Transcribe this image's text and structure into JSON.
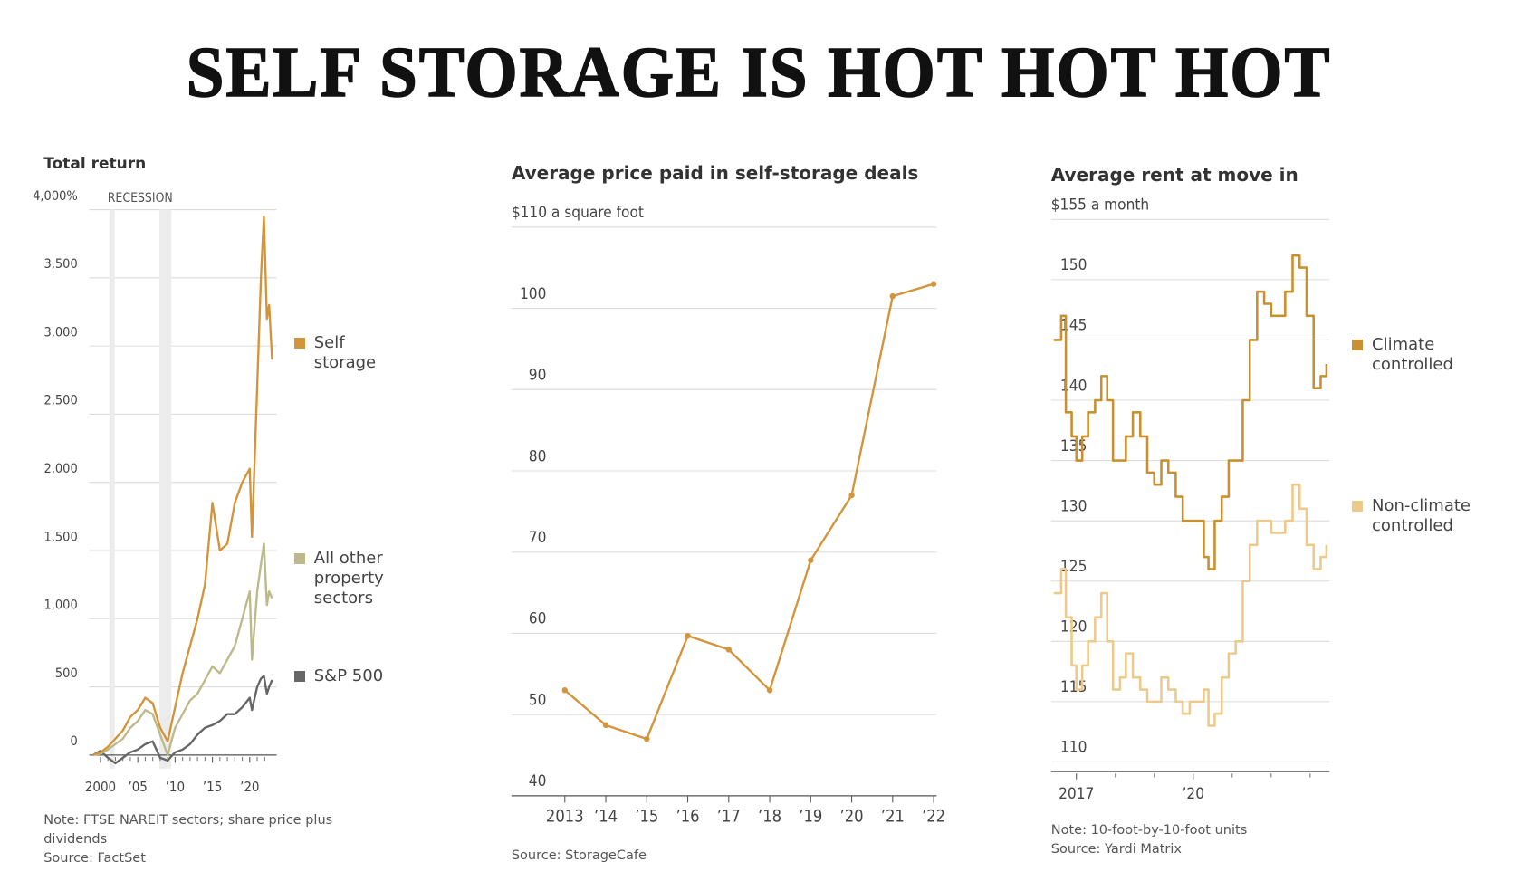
{
  "title": "SELF STORAGE IS HOT HOT HOT",
  "chart_data": [
    {
      "type": "line",
      "title": "Total return",
      "annotation": "RECESSION",
      "recessions": [
        [
          2001.2,
          2001.9
        ],
        [
          2007.9,
          2009.5
        ]
      ],
      "x": [
        1999,
        2000,
        2001,
        2002,
        2003,
        2004,
        2005,
        2006,
        2007,
        2008,
        2009,
        2010,
        2011,
        2012,
        2013,
        2014,
        2015,
        2016,
        2017,
        2018,
        2019,
        2020,
        2020.3,
        2021,
        2021.5,
        2021.9,
        2022.3,
        2022.6,
        2023
      ],
      "series": [
        {
          "name": "Self storage",
          "color": "#d4943a",
          "values": [
            0,
            20,
            60,
            120,
            180,
            280,
            330,
            420,
            380,
            200,
            100,
            350,
            600,
            800,
            1000,
            1250,
            1850,
            1500,
            1550,
            1850,
            2000,
            2100,
            1600,
            2700,
            3500,
            3950,
            3200,
            3300,
            2900
          ]
        },
        {
          "name": "All other property sectors",
          "color": "#bdb98a",
          "values": [
            0,
            10,
            40,
            80,
            120,
            200,
            250,
            330,
            300,
            150,
            0,
            200,
            300,
            400,
            450,
            550,
            650,
            600,
            700,
            800,
            1000,
            1200,
            700,
            1200,
            1400,
            1550,
            1100,
            1200,
            1150
          ]
        },
        {
          "name": "S&P 500",
          "color": "#666666",
          "values": [
            0,
            30,
            -20,
            -60,
            -20,
            20,
            40,
            80,
            100,
            -20,
            -40,
            20,
            40,
            80,
            150,
            200,
            220,
            250,
            300,
            300,
            350,
            420,
            330,
            500,
            560,
            580,
            450,
            500,
            550
          ]
        }
      ],
      "xlim": [
        1998.5,
        2023.6
      ],
      "xticks": [
        2000,
        {
          "value": 2005,
          "label": "’05"
        },
        {
          "value": 2010,
          "label": "’10"
        },
        {
          "value": 2015,
          "label": "’15"
        },
        {
          "value": 2020,
          "label": "’20"
        }
      ],
      "xminor": [
        2001,
        2002,
        2003,
        2004,
        2006,
        2007,
        2008,
        2009,
        2011,
        2012,
        2013,
        2014,
        2016,
        2017,
        2018,
        2019,
        2021,
        2022
      ],
      "ylim": [
        -100,
        4000
      ],
      "yticks": [
        0,
        500,
        {
          "value": 1000,
          "label": "1,000"
        },
        {
          "value": 1500,
          "label": "1,500"
        },
        {
          "value": 2000,
          "label": "2,000"
        },
        {
          "value": 2500,
          "label": "2,500"
        },
        {
          "value": 3000,
          "label": "3,000"
        },
        {
          "value": 3500,
          "label": "3,500"
        },
        {
          "value": 4000,
          "label": "4,000%"
        }
      ],
      "grid": true,
      "legend": "right",
      "notes": [
        "Note: FTSE NAREIT sectors; share price plus dividends",
        "Source: FactSet"
      ]
    },
    {
      "type": "line",
      "title": "Average price paid in self-storage deals",
      "categories": [
        "2013",
        "’14",
        "’15",
        "’16",
        "’17",
        "’18",
        "’19",
        "’20",
        "’21",
        "’22"
      ],
      "series": [
        {
          "name": null,
          "color": "#d4943a",
          "values": [
            53,
            48.7,
            47,
            59.7,
            58,
            53,
            69,
            77,
            101.5,
            103
          ]
        }
      ],
      "markers": true,
      "ylim": [
        40,
        110
      ],
      "yticks": [
        40,
        50,
        60,
        70,
        80,
        90,
        100,
        {
          "value": 110,
          "label": "$110 a square foot"
        }
      ],
      "grid": true,
      "notes": [
        "Source: StorageCafe"
      ]
    },
    {
      "type": "line",
      "title": "Average rent at move in",
      "step": true,
      "x": [
        2016.42,
        2016.61,
        2016.73,
        2016.88,
        2017.0,
        2017.15,
        2017.3,
        2017.48,
        2017.64,
        2017.79,
        2017.94,
        2018.12,
        2018.27,
        2018.45,
        2018.64,
        2018.82,
        2019.0,
        2019.18,
        2019.36,
        2019.55,
        2019.73,
        2019.91,
        2020.09,
        2020.27,
        2020.39,
        2020.55,
        2020.73,
        2020.91,
        2021.09,
        2021.27,
        2021.45,
        2021.64,
        2021.82,
        2022.0,
        2022.18,
        2022.36,
        2022.55,
        2022.73,
        2022.91,
        2023.09,
        2023.27,
        2023.42
      ],
      "series": [
        {
          "name": "Climate controlled",
          "color": "#c8902f",
          "values": [
            145,
            147,
            139,
            137,
            135,
            137,
            139,
            140,
            142,
            140,
            135,
            135,
            137,
            139,
            137,
            134,
            133,
            135,
            134,
            132,
            130,
            130,
            130,
            127,
            126,
            130,
            132,
            135,
            135,
            140,
            145,
            149,
            148,
            147,
            147,
            149,
            152,
            151,
            147,
            141,
            142,
            143
          ]
        },
        {
          "name": "Non-climate controlled",
          "color": "#edc98a",
          "values": [
            124,
            126,
            122,
            118,
            116,
            118,
            120,
            122,
            124,
            120,
            116,
            117,
            119,
            117,
            116,
            115,
            115,
            117,
            116,
            115,
            114,
            115,
            115,
            116,
            113,
            114,
            117,
            119,
            120,
            125,
            128,
            130,
            130,
            129,
            129,
            130,
            133,
            131,
            128,
            126,
            127,
            128
          ]
        }
      ],
      "xlim": [
        2016.35,
        2023.5
      ],
      "xticks": [
        2017,
        {
          "value": 2020,
          "label": "’20"
        }
      ],
      "xminor": [
        2018,
        2019,
        2021,
        2022,
        2023
      ],
      "ylim": [
        109.2,
        155
      ],
      "yticks": [
        110,
        115,
        120,
        125,
        130,
        135,
        140,
        145,
        150,
        {
          "value": 155,
          "label": "$155 a month"
        }
      ],
      "grid": true,
      "legend": "right",
      "notes": [
        "Note: 10-foot-by-10-foot units",
        "Source: Yardi Matrix"
      ]
    }
  ]
}
